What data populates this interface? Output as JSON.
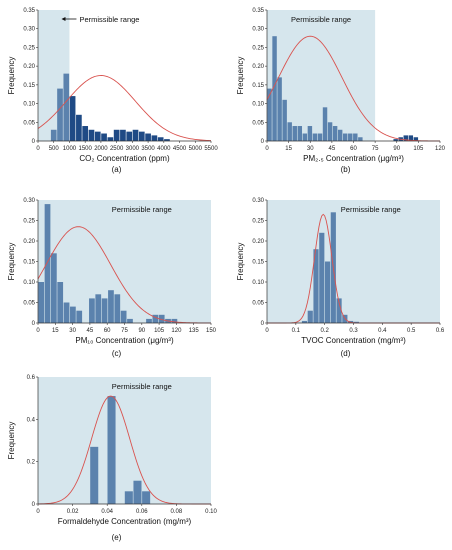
{
  "chart_data": [
    {
      "type": "bar",
      "panel_label": "(a)",
      "xlabel": "CO₂ Concentration (ppm)",
      "ylabel": "Frequency",
      "xlim": [
        0,
        5500
      ],
      "ylim": [
        0,
        0.35
      ],
      "xticks": [
        0,
        500,
        1000,
        1500,
        2000,
        2500,
        3000,
        3500,
        4000,
        4500,
        5000,
        5500
      ],
      "yticks": [
        0,
        0.05,
        0.1,
        0.15,
        0.2,
        0.25,
        0.3,
        0.35
      ],
      "tick_decimals": 2,
      "permissible": {
        "label": "Permissible range",
        "x0": 0,
        "x1": 1000,
        "arrow": true
      },
      "bin_width": 200,
      "bin_start": 400,
      "values": [
        0.03,
        0.14,
        0.18,
        0.12,
        0.07,
        0.04,
        0.03,
        0.025,
        0.02,
        0.01,
        0.03,
        0.03,
        0.025,
        0.03,
        0.025,
        0.02,
        0.015,
        0.01,
        0.005
      ],
      "curve": {
        "mu": 2000,
        "sigma": 1100,
        "peak": 0.175
      },
      "colors": {
        "bar": "#5b82ad",
        "bar_dark": "#1f4a85",
        "region": "#d6e6ed",
        "curve": "#d9534f"
      }
    },
    {
      "type": "bar",
      "panel_label": "(b)",
      "xlabel": "PM₂.₅ Concentration (μg/m³)",
      "ylabel": "Frequency",
      "xlim": [
        0,
        120
      ],
      "ylim": [
        0,
        0.35
      ],
      "xticks": [
        0,
        15,
        30,
        45,
        60,
        75,
        90,
        105,
        120
      ],
      "yticks": [
        0,
        0.05,
        0.1,
        0.15,
        0.2,
        0.25,
        0.3,
        0.35
      ],
      "tick_decimals": 2,
      "permissible": {
        "label": "Permissible range",
        "x0": 0,
        "x1": 75,
        "arrow": false
      },
      "bin_width": 3.5,
      "bin_start": 0,
      "values": [
        0.14,
        0.28,
        0.17,
        0.11,
        0.05,
        0.04,
        0.04,
        0.02,
        0.04,
        0.02,
        0.02,
        0.09,
        0.05,
        0.04,
        0.03,
        0.02,
        0.02,
        0.02,
        0.01,
        0.0,
        0.0,
        0.0,
        0.0,
        0.0,
        0.0,
        0.005,
        0.01,
        0.015,
        0.015,
        0.01,
        0.0
      ],
      "curve": {
        "mu": 30,
        "sigma": 22,
        "peak": 0.28
      },
      "colors": {
        "bar": "#5b82ad",
        "bar_dark": "#1f4a85",
        "region": "#d6e6ed",
        "curve": "#d9534f"
      }
    },
    {
      "type": "bar",
      "panel_label": "(c)",
      "xlabel": "PM₁₀ Concentration (μg/m³)",
      "ylabel": "Frequency",
      "xlim": [
        0,
        150
      ],
      "ylim": [
        0,
        0.3
      ],
      "xticks": [
        0,
        15,
        30,
        45,
        60,
        75,
        90,
        105,
        120,
        135,
        150
      ],
      "yticks": [
        0,
        0.05,
        0.1,
        0.15,
        0.2,
        0.25,
        0.3
      ],
      "tick_decimals": 2,
      "permissible": {
        "label": "Permissible range",
        "x0": 0,
        "x1": 150,
        "arrow": false
      },
      "bin_width": 5.5,
      "bin_start": 0,
      "values": [
        0.1,
        0.29,
        0.17,
        0.1,
        0.05,
        0.04,
        0.03,
        0.0,
        0.06,
        0.07,
        0.06,
        0.08,
        0.07,
        0.03,
        0.01,
        0.0,
        0.0,
        0.01,
        0.02,
        0.02,
        0.01,
        0.01,
        0.0,
        0.0
      ],
      "curve": {
        "mu": 35,
        "sigma": 28,
        "peak": 0.235
      },
      "colors": {
        "bar": "#5b82ad",
        "bar_dark": "#1f4a85",
        "region": "#d6e6ed",
        "curve": "#d9534f"
      }
    },
    {
      "type": "bar",
      "panel_label": "(d)",
      "xlabel": "TVOC Concentration (mg/m³)",
      "ylabel": "Frequency",
      "xlim": [
        0,
        0.6
      ],
      "ylim": [
        0,
        0.3
      ],
      "xticks": [
        0,
        0.1,
        0.2,
        0.3,
        0.4,
        0.5,
        0.6
      ],
      "yticks": [
        0,
        0.05,
        0.1,
        0.15,
        0.2,
        0.25,
        0.3
      ],
      "tick_decimals": 2,
      "xtick_decimals": 1,
      "permissible": {
        "label": "Permissible range",
        "x0": 0,
        "x1": 0.6,
        "arrow": false
      },
      "bin_width": 0.02,
      "bin_start": 0.12,
      "values": [
        0.005,
        0.03,
        0.18,
        0.22,
        0.15,
        0.27,
        0.06,
        0.02,
        0.005,
        0.003
      ],
      "curve": {
        "mu": 0.195,
        "sigma": 0.03,
        "peak": 0.265
      },
      "colors": {
        "bar": "#5b82ad",
        "bar_dark": "#1f4a85",
        "region": "#d6e6ed",
        "curve": "#d9534f"
      }
    },
    {
      "type": "bar",
      "panel_label": "(e)",
      "xlabel": "Formaldehyde Concentration (mg/m³)",
      "ylabel": "Frequency",
      "xlim": [
        0,
        0.1
      ],
      "ylim": [
        0,
        0.6
      ],
      "xticks": [
        0,
        0.02,
        0.04,
        0.06,
        0.08,
        0.1
      ],
      "yticks": [
        0,
        0.2,
        0.4,
        0.6
      ],
      "tick_decimals": 1,
      "xtick_decimals": 2,
      "permissible": {
        "label": "Permissible range",
        "x0": 0,
        "x1": 0.1,
        "arrow": false
      },
      "bin_width": 0.005,
      "bin_start": 0.03,
      "values": [
        0.27,
        0.0,
        0.51,
        0.0,
        0.06,
        0.11,
        0.06,
        0.0
      ],
      "curve": {
        "mu": 0.042,
        "sigma": 0.011,
        "peak": 0.51
      },
      "colors": {
        "bar": "#5b82ad",
        "bar_dark": "#1f4a85",
        "region": "#d6e6ed",
        "curve": "#d9534f"
      }
    }
  ]
}
